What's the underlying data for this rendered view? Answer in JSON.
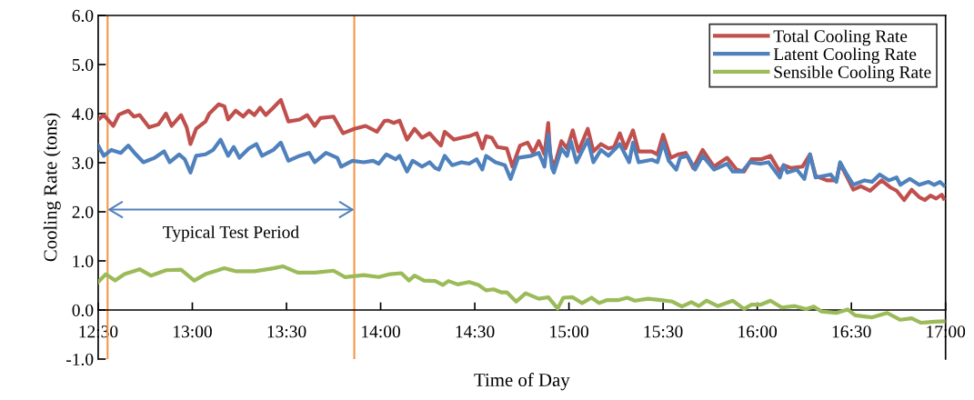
{
  "chart_data": {
    "type": "line",
    "xlabel": "Time of Day",
    "ylabel": "Cooling Rate (tons)",
    "xlim": [
      12.5,
      17
    ],
    "xticks": [
      {
        "value": 12.5,
        "label": "12:30"
      },
      {
        "value": 13,
        "label": "13:00"
      },
      {
        "value": 13.5,
        "label": "13:30"
      },
      {
        "value": 14,
        "label": "14:00"
      },
      {
        "value": 14.5,
        "label": "14:30"
      },
      {
        "value": 15,
        "label": "15:00"
      },
      {
        "value": 15.5,
        "label": "15:30"
      },
      {
        "value": 16,
        "label": "16:00"
      },
      {
        "value": 16.5,
        "label": "16:30"
      },
      {
        "value": 17,
        "label": "17:00"
      }
    ],
    "ylim": [
      -1,
      6
    ],
    "yticks": [
      {
        "value": -1,
        "label": "-1.0"
      },
      {
        "value": 0,
        "label": "0.0"
      },
      {
        "value": 1,
        "label": "1.0"
      },
      {
        "value": 2,
        "label": "2.0"
      },
      {
        "value": 3,
        "label": "3.0"
      },
      {
        "value": 4,
        "label": "4.0"
      },
      {
        "value": 5,
        "label": "5.0"
      },
      {
        "value": 6,
        "label": "6.0"
      }
    ],
    "grid": false,
    "legend": "top right",
    "marker": "none",
    "line_style": "solid",
    "series": [
      {
        "name": "Total Cooling Rate",
        "color": "#c0504d",
        "x": [
          12.5,
          12.53,
          12.58,
          12.61,
          12.66,
          12.69,
          12.72,
          12.77,
          12.82,
          12.86,
          12.89,
          12.94,
          12.97,
          12.99,
          13.02,
          13.07,
          13.09,
          13.14,
          13.17,
          13.19,
          13.23,
          13.27,
          13.3,
          13.33,
          13.36,
          13.39,
          13.43,
          13.47,
          13.51,
          13.57,
          13.61,
          13.65,
          13.68,
          13.75,
          13.8,
          13.86,
          13.92,
          13.98,
          14.02,
          14.04,
          14.07,
          14.1,
          14.14,
          14.18,
          14.22,
          14.26,
          14.29,
          14.32,
          14.34,
          14.39,
          14.43,
          14.47,
          14.51,
          14.54,
          14.56,
          14.59,
          14.62,
          14.67,
          14.7,
          14.74,
          14.78,
          14.81,
          14.84,
          14.87,
          14.89,
          14.9,
          14.92,
          14.96,
          14.99,
          15.02,
          15.05,
          15.1,
          15.13,
          15.17,
          15.21,
          15.24,
          15.27,
          15.3,
          15.34,
          15.37,
          15.44,
          15.47,
          15.5,
          15.54,
          15.58,
          15.62,
          15.66,
          15.71,
          15.77,
          15.84,
          15.89,
          15.93,
          15.97,
          16.02,
          16.07,
          16.12,
          16.14,
          16.18,
          16.24,
          16.28,
          16.31,
          16.37,
          16.42,
          16.44,
          16.47,
          16.51,
          16.55,
          16.6,
          16.66,
          16.71,
          16.74,
          16.78,
          16.82,
          16.86,
          16.89,
          16.92,
          16.95,
          16.98,
          16.99
        ],
        "values": [
          3.88,
          3.97,
          3.75,
          3.98,
          4.06,
          3.94,
          3.97,
          3.72,
          3.78,
          4.0,
          3.75,
          3.97,
          3.72,
          3.38,
          3.69,
          3.84,
          4.0,
          4.19,
          4.15,
          3.88,
          4.06,
          3.94,
          4.06,
          3.97,
          4.12,
          3.97,
          4.12,
          4.28,
          3.84,
          3.88,
          3.97,
          3.75,
          3.91,
          3.94,
          3.6,
          3.69,
          3.75,
          3.63,
          3.85,
          3.86,
          3.81,
          3.86,
          3.47,
          3.69,
          3.51,
          3.6,
          3.47,
          3.35,
          3.63,
          3.47,
          3.51,
          3.54,
          3.6,
          3.29,
          3.54,
          3.51,
          3.32,
          3.29,
          2.92,
          3.35,
          3.41,
          3.2,
          3.44,
          3.17,
          3.81,
          3.17,
          2.89,
          3.44,
          3.29,
          3.66,
          3.23,
          3.69,
          3.23,
          3.38,
          3.29,
          3.32,
          3.6,
          3.29,
          3.66,
          3.23,
          3.23,
          3.17,
          3.57,
          3.1,
          3.17,
          3.2,
          2.89,
          3.26,
          2.92,
          3.1,
          2.86,
          2.82,
          3.07,
          3.07,
          3.14,
          2.82,
          2.95,
          2.89,
          2.92,
          3.17,
          2.73,
          2.64,
          2.64,
          2.98,
          2.76,
          2.45,
          2.52,
          2.43,
          2.64,
          2.49,
          2.43,
          2.24,
          2.45,
          2.3,
          2.24,
          2.33,
          2.27,
          2.35,
          2.27
        ]
      },
      {
        "name": "Latent Cooling Rate",
        "color": "#4f81bd",
        "x": [
          12.5,
          12.53,
          12.57,
          12.62,
          12.66,
          12.7,
          12.74,
          12.8,
          12.85,
          12.88,
          12.93,
          12.96,
          12.99,
          13.02,
          13.07,
          13.11,
          13.15,
          13.19,
          13.22,
          13.25,
          13.3,
          13.34,
          13.37,
          13.43,
          13.47,
          13.51,
          13.57,
          13.62,
          13.65,
          13.71,
          13.77,
          13.79,
          13.85,
          13.91,
          13.96,
          13.99,
          14.03,
          14.08,
          14.1,
          14.14,
          14.17,
          14.22,
          14.26,
          14.29,
          14.31,
          14.34,
          14.38,
          14.43,
          14.47,
          14.51,
          14.54,
          14.56,
          14.61,
          14.66,
          14.69,
          14.73,
          14.8,
          14.84,
          14.87,
          14.89,
          14.91,
          14.92,
          14.96,
          14.99,
          15.01,
          15.04,
          15.1,
          15.13,
          15.17,
          15.21,
          15.27,
          15.32,
          15.34,
          15.37,
          15.44,
          15.47,
          15.5,
          15.53,
          15.57,
          15.59,
          15.63,
          15.67,
          15.71,
          15.77,
          15.84,
          15.87,
          15.92,
          15.96,
          16.02,
          16.06,
          16.12,
          16.14,
          16.16,
          16.21,
          16.25,
          16.28,
          16.31,
          16.39,
          16.42,
          16.44,
          16.47,
          16.51,
          16.57,
          16.61,
          16.65,
          16.7,
          16.74,
          16.76,
          16.81,
          16.86,
          16.91,
          16.94,
          16.97,
          16.99
        ],
        "values": [
          3.35,
          3.14,
          3.26,
          3.2,
          3.35,
          3.17,
          3.01,
          3.1,
          3.23,
          3.01,
          3.17,
          3.07,
          2.8,
          3.14,
          3.17,
          3.26,
          3.47,
          3.14,
          3.32,
          3.1,
          3.29,
          3.38,
          3.14,
          3.26,
          3.41,
          3.04,
          3.14,
          3.2,
          3.01,
          3.2,
          3.1,
          2.92,
          3.04,
          3.01,
          3.04,
          2.98,
          3.17,
          3.07,
          3.14,
          2.82,
          3.04,
          2.92,
          3.01,
          2.89,
          2.86,
          3.14,
          2.95,
          3.01,
          2.98,
          3.07,
          2.86,
          3.14,
          3.01,
          2.95,
          2.67,
          3.1,
          3.14,
          3.2,
          2.92,
          3.57,
          2.89,
          2.8,
          3.29,
          3.14,
          3.44,
          3.01,
          3.47,
          3.01,
          3.26,
          3.14,
          3.38,
          3.01,
          3.41,
          3.01,
          3.06,
          3.01,
          3.41,
          3.04,
          2.86,
          3.1,
          3.14,
          2.86,
          3.14,
          2.86,
          2.98,
          2.82,
          2.82,
          3.01,
          2.98,
          3.01,
          2.7,
          2.95,
          2.8,
          2.86,
          2.67,
          3.17,
          2.7,
          2.76,
          2.61,
          3.01,
          2.8,
          2.55,
          2.64,
          2.61,
          2.76,
          2.64,
          2.7,
          2.55,
          2.67,
          2.55,
          2.61,
          2.55,
          2.61,
          2.54
        ]
      },
      {
        "name": "Sensible Cooling Rate",
        "color": "#9bbb59",
        "x": [
          12.5,
          12.54,
          12.59,
          12.64,
          12.72,
          12.78,
          12.86,
          12.94,
          13.01,
          13.07,
          13.17,
          13.23,
          13.33,
          13.43,
          13.48,
          13.56,
          13.65,
          13.75,
          13.81,
          13.91,
          13.99,
          14.05,
          14.11,
          14.15,
          14.18,
          14.23,
          14.29,
          14.33,
          14.36,
          14.41,
          14.47,
          14.52,
          14.56,
          14.6,
          14.64,
          14.67,
          14.72,
          14.77,
          14.84,
          14.89,
          14.94,
          14.97,
          15.02,
          15.07,
          15.12,
          15.16,
          15.2,
          15.26,
          15.31,
          15.35,
          15.42,
          15.49,
          15.55,
          15.6,
          15.65,
          15.69,
          15.73,
          15.79,
          15.87,
          15.93,
          15.97,
          16.02,
          16.07,
          16.13,
          16.2,
          16.26,
          16.3,
          16.34,
          16.42,
          16.48,
          16.52,
          16.61,
          16.69,
          16.76,
          16.82,
          16.87,
          16.94,
          16.99
        ],
        "values": [
          0.57,
          0.73,
          0.6,
          0.73,
          0.83,
          0.7,
          0.81,
          0.82,
          0.6,
          0.73,
          0.85,
          0.79,
          0.79,
          0.85,
          0.89,
          0.76,
          0.76,
          0.8,
          0.67,
          0.71,
          0.67,
          0.73,
          0.75,
          0.6,
          0.7,
          0.6,
          0.59,
          0.51,
          0.59,
          0.52,
          0.57,
          0.51,
          0.4,
          0.42,
          0.36,
          0.36,
          0.17,
          0.34,
          0.23,
          0.26,
          0.03,
          0.25,
          0.26,
          0.14,
          0.25,
          0.14,
          0.2,
          0.2,
          0.25,
          0.19,
          0.23,
          0.2,
          0.17,
          0.07,
          0.16,
          0.08,
          0.19,
          0.08,
          0.19,
          0.02,
          0.11,
          0.11,
          0.19,
          0.05,
          0.08,
          0.02,
          0.07,
          -0.03,
          -0.06,
          0.01,
          -0.11,
          -0.15,
          -0.06,
          -0.2,
          -0.17,
          -0.26,
          -0.24,
          -0.23
        ]
      }
    ],
    "ref_lines": [
      {
        "axis": "x",
        "value": 12.55,
        "color": "#f79646",
        "line_style": "solid"
      },
      {
        "axis": "x",
        "value": 13.86,
        "color": "#f79646",
        "line_style": "solid"
      }
    ],
    "annotations": [
      "Typical Test Period"
    ]
  }
}
